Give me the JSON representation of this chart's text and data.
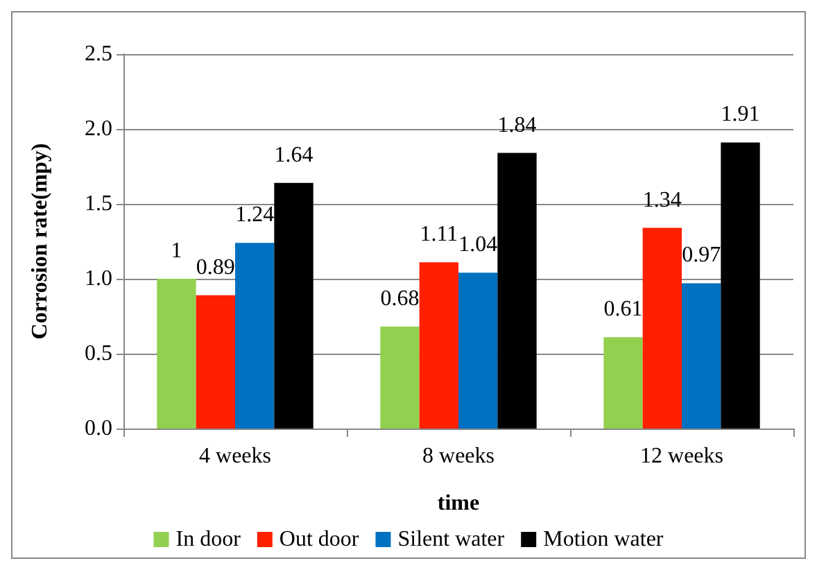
{
  "chart_data": {
    "type": "bar",
    "xlabel": "time",
    "ylabel": "Corrosion rate(mpy)",
    "categories": [
      "4 weeks",
      "8 weeks",
      "12 weeks"
    ],
    "series": [
      {
        "name": "In door",
        "color": "#92d050",
        "values": [
          1,
          0.68,
          0.61
        ]
      },
      {
        "name": "Out door",
        "color": "#ff2000",
        "values": [
          0.89,
          1.11,
          1.34
        ]
      },
      {
        "name": "Silent water",
        "color": "#0070c0",
        "values": [
          1.24,
          1.04,
          0.97
        ]
      },
      {
        "name": "Motion water",
        "color": "#000000",
        "values": [
          1.64,
          1.84,
          1.91
        ]
      }
    ],
    "ylim": [
      0,
      2.5
    ],
    "yticks": [
      {
        "value": 0,
        "label": "0.0"
      },
      {
        "value": 0.5,
        "label": "0.5"
      },
      {
        "value": 1,
        "label": "1.0"
      },
      {
        "value": 1.5,
        "label": "1.5"
      },
      {
        "value": 2,
        "label": "2.0"
      },
      {
        "value": 2.5,
        "label": "2.5"
      }
    ],
    "grid": "y",
    "legend": "bottom",
    "data_labels": true
  }
}
